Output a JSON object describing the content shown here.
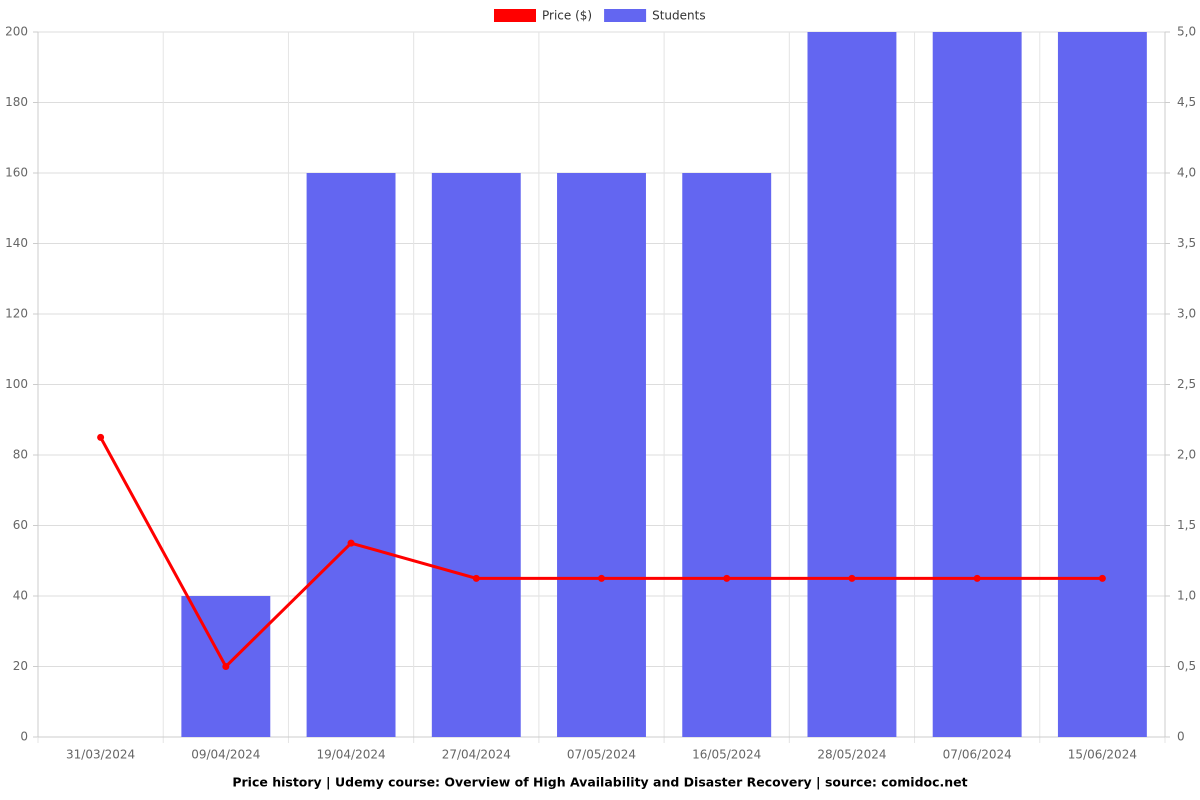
{
  "chart_data": {
    "type": "bar",
    "title": "Price history | Udemy course: Overview of High Availability and Disaster Recovery | source: comidoc.net",
    "categories": [
      "31/03/2024",
      "09/04/2024",
      "19/04/2024",
      "27/04/2024",
      "07/05/2024",
      "16/05/2024",
      "28/05/2024",
      "07/06/2024",
      "15/06/2024"
    ],
    "series": [
      {
        "name": "Price ($)",
        "type": "line",
        "color": "#ff0000",
        "axis": "y",
        "values": [
          85,
          20,
          55,
          45,
          45,
          45,
          45,
          45,
          45
        ]
      },
      {
        "name": "Students",
        "type": "bar",
        "color": "#6366f1",
        "axis": "y2",
        "values": [
          0,
          1,
          4,
          4,
          4,
          4,
          5,
          5,
          5
        ]
      }
    ],
    "ylim": [
      0,
      200
    ],
    "yticks": [
      0,
      20,
      40,
      60,
      80,
      100,
      120,
      140,
      160,
      180,
      200
    ],
    "y2lim": [
      0,
      5
    ],
    "y2ticks": [
      0,
      {
        "value": 0.5,
        "label": "0,5"
      },
      {
        "value": 1,
        "label": "1,0"
      },
      {
        "value": 1.5,
        "label": "1,5"
      },
      {
        "value": 2,
        "label": "2,0"
      },
      {
        "value": 2.5,
        "label": "2,5"
      },
      {
        "value": 3,
        "label": "3,0"
      },
      {
        "value": 3.5,
        "label": "3,5"
      },
      {
        "value": 4,
        "label": "4,0"
      },
      {
        "value": 4.5,
        "label": "4,5"
      },
      {
        "value": 5,
        "label": "5,0"
      }
    ],
    "grid": true,
    "legend": "top"
  }
}
